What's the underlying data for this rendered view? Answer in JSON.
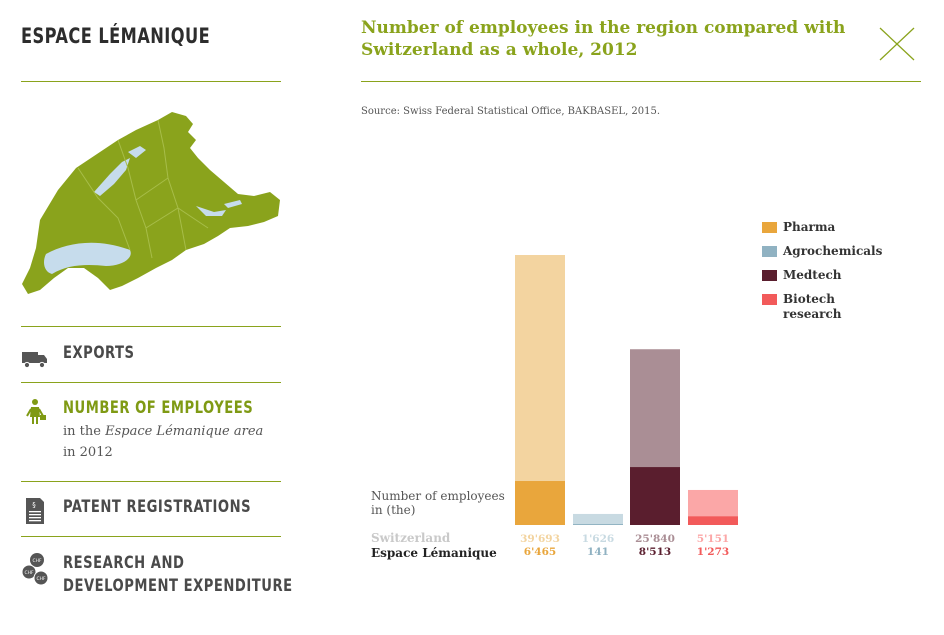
{
  "header": {
    "brand": "ESPACE LÉMANIQUE"
  },
  "nav": {
    "exports": "EXPORTS",
    "employees": "NUMBER OF EMPLOYEES",
    "employees_sub1_pre": "in the ",
    "employees_sub1_em": "Espace Lémanique area",
    "employees_sub2": "in 2012",
    "patents": "PATENT REGISTRATIONS",
    "rd_line1": "RESEARCH AND",
    "rd_line2": "DEVELOPMENT EXPENDITURE"
  },
  "icons": {
    "exports": "truck-icon",
    "employees": "worker-icon",
    "patents": "document-icon",
    "rd": "chf-coins-icon",
    "close": "close-icon",
    "map": "region-map-icon"
  },
  "colors": {
    "accent": "#8aa31c",
    "pharma": "#e9a63c",
    "pharma_light": "#f3d4a0",
    "agro": "#90b2c2",
    "agro_light": "#c8dae2",
    "medtech": "#5a1e2e",
    "medtech_light": "#aa8e95",
    "biotech": "#f25a5a",
    "biotech_light": "#fba7a7"
  },
  "chart_data": {
    "type": "bar",
    "title": "Number of employees in the region compared with Switzerland as a whole, 2012",
    "source": "Source: Swiss Federal Statistical Office, BAKBASEL, 2015.",
    "ylabel": "Number of employees in (the)",
    "categories": [
      "Pharma",
      "Agrochemicals",
      "Medtech",
      "Biotech research"
    ],
    "legend_position": "top-right",
    "series": [
      {
        "name": "Switzerland",
        "values": [
          39693,
          1626,
          25840,
          5151
        ],
        "labels": [
          "39'693",
          "1'626",
          "25'840",
          "5'151"
        ]
      },
      {
        "name": "Espace Lémanique",
        "values": [
          6465,
          141,
          8513,
          1273
        ],
        "labels": [
          "6'465",
          "141",
          "8'513",
          "1'273"
        ]
      }
    ],
    "ylim": [
      0,
      39693
    ]
  }
}
